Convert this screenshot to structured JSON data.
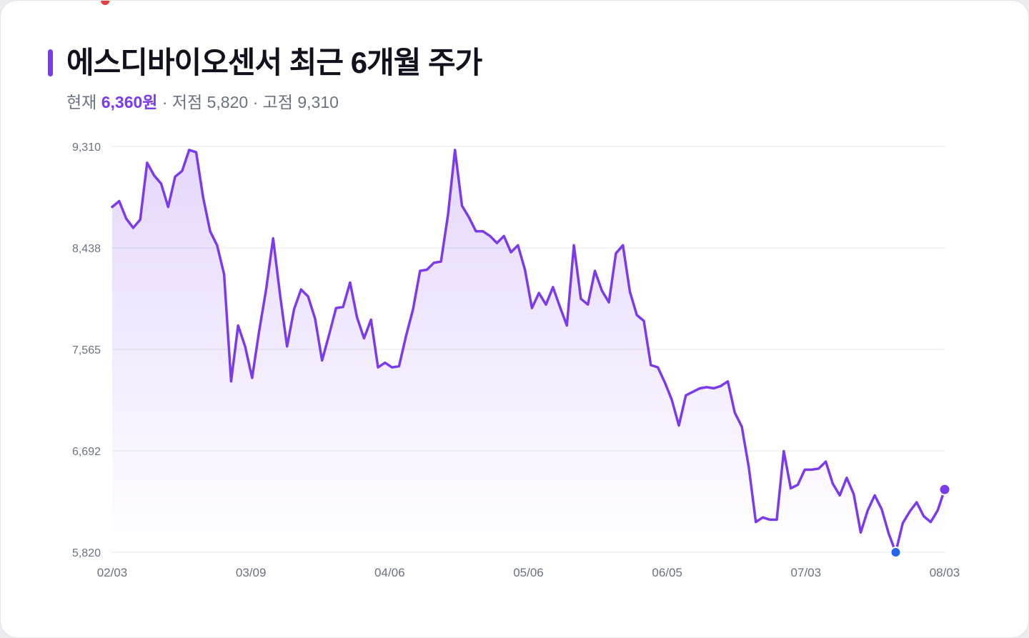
{
  "header": {
    "title": "에스디바이오센서 최근 6개월 주가",
    "current_label": "현재",
    "current_value": "6,360원",
    "sep1": "·",
    "low_label": "저점",
    "low_value": "5,820",
    "sep2": "·",
    "high_label": "고점",
    "high_value": "9,310"
  },
  "colors": {
    "accent": "#7c3aed",
    "high_marker": "#e53e3e",
    "low_marker": "#2563eb",
    "grid": "#e5e7eb"
  },
  "chart_data": {
    "type": "area",
    "y_ticks": [
      "9,310",
      "8,438",
      "7,565",
      "6,692",
      "5,820"
    ],
    "x_ticks": [
      "02/03",
      "03/09",
      "04/06",
      "05/06",
      "06/05",
      "07/03",
      "08/03"
    ],
    "ylim": [
      5820,
      9310
    ],
    "grid": true,
    "markers": {
      "high": {
        "value": 9310
      },
      "low": {
        "value": 5820
      },
      "last": {
        "value": 6360
      }
    },
    "series": [
      {
        "values": [
          8790,
          8840,
          8690,
          8610,
          8680,
          9170,
          9060,
          8990,
          8790,
          9050,
          9100,
          9280,
          9260,
          8870,
          8580,
          8460,
          8210,
          7290,
          7770,
          7590,
          7320,
          7720,
          8080,
          8520,
          8030,
          7590,
          7910,
          8080,
          8020,
          7830,
          7470,
          7690,
          7920,
          7930,
          8140,
          7840,
          7660,
          7820,
          7410,
          7450,
          7410,
          7420,
          7680,
          7910,
          8240,
          8250,
          8310,
          8320,
          8720,
          9280,
          8800,
          8700,
          8580,
          8580,
          8540,
          8480,
          8540,
          8400,
          8460,
          8250,
          7920,
          8050,
          7950,
          8100,
          7930,
          7770,
          8460,
          8000,
          7950,
          8240,
          8070,
          7970,
          8390,
          8460,
          8060,
          7860,
          7810,
          7430,
          7410,
          7280,
          7130,
          6910,
          7170,
          7200,
          7230,
          7240,
          7230,
          7250,
          7290,
          7020,
          6900,
          6550,
          6080,
          6120,
          6100,
          6100,
          6690,
          6370,
          6400,
          6530,
          6530,
          6540,
          6600,
          6410,
          6310,
          6460,
          6320,
          5990,
          6180,
          6310,
          6190,
          5980,
          5820,
          6070,
          6170,
          6250,
          6130,
          6080,
          6180,
          6360
        ]
      }
    ]
  }
}
